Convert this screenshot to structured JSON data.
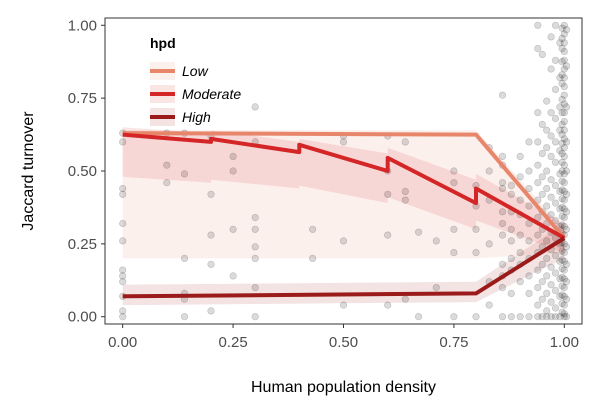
{
  "chart_data": {
    "type": "line",
    "xlabel": "Human population density",
    "ylabel": "Jaccard turnover",
    "xlim": [
      -0.04,
      1.04
    ],
    "ylim": [
      -0.025,
      1.025
    ],
    "x_ticks": [
      "0.00",
      "0.25",
      "0.50",
      "0.75",
      "1.00"
    ],
    "y_ticks": [
      "0.00",
      "0.25",
      "0.50",
      "0.75",
      "1.00"
    ],
    "grid": false,
    "legend": {
      "title": "hpd",
      "placement": "top-left",
      "entries": [
        "Low",
        "Moderate",
        "High"
      ]
    },
    "series": [
      {
        "name": "Low",
        "color": "#E8866B",
        "x": [
          0.0,
          0.8,
          1.0
        ],
        "y": [
          0.63,
          0.625,
          0.27
        ],
        "ribbon_lower": [
          0.2,
          0.2,
          0.22
        ],
        "ribbon_upper": [
          0.64,
          0.64,
          0.3
        ]
      },
      {
        "name": "Moderate",
        "color": "#D42626",
        "x": [
          0.0,
          0.2,
          0.2,
          0.4,
          0.4,
          0.6,
          0.6,
          0.8,
          0.8,
          1.0
        ],
        "y": [
          0.625,
          0.6,
          0.61,
          0.565,
          0.59,
          0.5,
          0.545,
          0.39,
          0.44,
          0.27
        ],
        "ribbon_lower": [
          0.48,
          0.46,
          0.47,
          0.44,
          0.45,
          0.39,
          0.41,
          0.3,
          0.33,
          0.22
        ],
        "ribbon_upper": [
          0.65,
          0.63,
          0.64,
          0.6,
          0.61,
          0.56,
          0.58,
          0.47,
          0.49,
          0.32
        ]
      },
      {
        "name": "High",
        "color": "#9B1B1B",
        "x": [
          0.0,
          0.8,
          1.0
        ],
        "y": [
          0.07,
          0.08,
          0.27
        ],
        "ribbon_lower": [
          0.04,
          0.05,
          0.2
        ],
        "ribbon_upper": [
          0.11,
          0.12,
          0.32
        ]
      }
    ],
    "points": {
      "color": "#000000",
      "alpha": 0.14,
      "data": [
        [
          0,
          0.63
        ],
        [
          0,
          0.6
        ],
        [
          0,
          0.44
        ],
        [
          0,
          0.42
        ],
        [
          0,
          0.32
        ],
        [
          0,
          0.26
        ],
        [
          0,
          0.16
        ],
        [
          0,
          0.14
        ],
        [
          0,
          0.12
        ],
        [
          0,
          0.07
        ],
        [
          0,
          0.02
        ],
        [
          0,
          0
        ],
        [
          0.1,
          0.63
        ],
        [
          0.1,
          0.52
        ],
        [
          0.1,
          0.46
        ],
        [
          0.14,
          0.63
        ],
        [
          0.14,
          0.49
        ],
        [
          0.14,
          0.2
        ],
        [
          0.14,
          0.08
        ],
        [
          0.14,
          0.06
        ],
        [
          0.14,
          0
        ],
        [
          0.2,
          0.62
        ],
        [
          0.2,
          0.42
        ],
        [
          0.2,
          0.28
        ],
        [
          0.2,
          0.18
        ],
        [
          0.2,
          0.02
        ],
        [
          0.25,
          0.55
        ],
        [
          0.25,
          0.5
        ],
        [
          0.25,
          0.3
        ],
        [
          0.25,
          0.14
        ],
        [
          0.3,
          0.72
        ],
        [
          0.3,
          0.6
        ],
        [
          0.3,
          0.34
        ],
        [
          0.3,
          0.3
        ],
        [
          0.3,
          0.24
        ],
        [
          0.3,
          0.2
        ],
        [
          0.3,
          0.1
        ],
        [
          0.3,
          0.0
        ],
        [
          0.43,
          0.3
        ],
        [
          0.43,
          0.2
        ],
        [
          0.5,
          0.62
        ],
        [
          0.5,
          0.6
        ],
        [
          0.5,
          0.26
        ],
        [
          0.5,
          0.04
        ],
        [
          0.6,
          0.62
        ],
        [
          0.6,
          0.5
        ],
        [
          0.6,
          0.42
        ],
        [
          0.6,
          0.28
        ],
        [
          0.6,
          0.04
        ],
        [
          0.64,
          0.6
        ],
        [
          0.64,
          0.43
        ],
        [
          0.64,
          0.4
        ],
        [
          0.64,
          0.06
        ],
        [
          0.67,
          0.29
        ],
        [
          0.67,
          0.0
        ],
        [
          0.71,
          0.26
        ],
        [
          0.71,
          0.1
        ],
        [
          0.75,
          0.5
        ],
        [
          0.75,
          0.46
        ],
        [
          0.75,
          0.3
        ],
        [
          0.75,
          0.22
        ],
        [
          0.75,
          0.0
        ],
        [
          0.8,
          0.45
        ],
        [
          0.8,
          0.38
        ],
        [
          0.8,
          0.3
        ],
        [
          0.8,
          0.22
        ],
        [
          0.8,
          0.0
        ],
        [
          0.83,
          0.58
        ],
        [
          0.83,
          0.5
        ],
        [
          0.83,
          0.4
        ],
        [
          0.83,
          0.25
        ],
        [
          0.83,
          0.12
        ],
        [
          0.83,
          0.04
        ],
        [
          0.86,
          0.76
        ],
        [
          0.86,
          0.55
        ],
        [
          0.86,
          0.52
        ],
        [
          0.86,
          0.46
        ],
        [
          0.86,
          0.44
        ],
        [
          0.86,
          0.36
        ],
        [
          0.86,
          0.32
        ],
        [
          0.86,
          0.28
        ],
        [
          0.86,
          0.18
        ],
        [
          0.86,
          0.14
        ],
        [
          0.86,
          0.1
        ],
        [
          0.86,
          0.0
        ],
        [
          0.88,
          0.45
        ],
        [
          0.88,
          0.42
        ],
        [
          0.88,
          0.36
        ],
        [
          0.88,
          0.3
        ],
        [
          0.88,
          0.26
        ],
        [
          0.88,
          0.2
        ],
        [
          0.88,
          0.16
        ],
        [
          0.88,
          0.08
        ],
        [
          0.88,
          0.0
        ],
        [
          0.9,
          0.55
        ],
        [
          0.9,
          0.48
        ],
        [
          0.9,
          0.4
        ],
        [
          0.9,
          0.35
        ],
        [
          0.9,
          0.28
        ],
        [
          0.9,
          0.22
        ],
        [
          0.9,
          0.18
        ],
        [
          0.9,
          0.12
        ],
        [
          0.9,
          0.0
        ],
        [
          0.92,
          0.6
        ],
        [
          0.92,
          0.5
        ],
        [
          0.92,
          0.44
        ],
        [
          0.92,
          0.38
        ],
        [
          0.92,
          0.32
        ],
        [
          0.92,
          0.26
        ],
        [
          0.92,
          0.2
        ],
        [
          0.92,
          0.14
        ],
        [
          0.92,
          0.08
        ],
        [
          0.92,
          0.0
        ],
        [
          0.94,
          1.0
        ],
        [
          0.94,
          0.92
        ],
        [
          0.94,
          0.7
        ],
        [
          0.94,
          0.6
        ],
        [
          0.94,
          0.52
        ],
        [
          0.94,
          0.46
        ],
        [
          0.94,
          0.4
        ],
        [
          0.94,
          0.34
        ],
        [
          0.94,
          0.28
        ],
        [
          0.94,
          0.22
        ],
        [
          0.94,
          0.16
        ],
        [
          0.94,
          0.1
        ],
        [
          0.94,
          0.04
        ],
        [
          0.94,
          0.0
        ],
        [
          0.95,
          0.9
        ],
        [
          0.95,
          0.66
        ],
        [
          0.95,
          0.56
        ],
        [
          0.95,
          0.48
        ],
        [
          0.95,
          0.42
        ],
        [
          0.95,
          0.36
        ],
        [
          0.95,
          0.3
        ],
        [
          0.95,
          0.24
        ],
        [
          0.95,
          0.18
        ],
        [
          0.95,
          0.12
        ],
        [
          0.95,
          0.06
        ],
        [
          0.95,
          0.0
        ],
        [
          0.96,
          0.74
        ],
        [
          0.96,
          0.64
        ],
        [
          0.96,
          0.58
        ],
        [
          0.96,
          0.5
        ],
        [
          0.96,
          0.44
        ],
        [
          0.96,
          0.38
        ],
        [
          0.96,
          0.32
        ],
        [
          0.96,
          0.26
        ],
        [
          0.96,
          0.2
        ],
        [
          0.96,
          0.14
        ],
        [
          0.96,
          0.08
        ],
        [
          0.96,
          0.02
        ],
        [
          0.96,
          0.0
        ],
        [
          0.97,
          0.96
        ],
        [
          0.97,
          0.85
        ],
        [
          0.97,
          0.7
        ],
        [
          0.97,
          0.62
        ],
        [
          0.97,
          0.55
        ],
        [
          0.97,
          0.47
        ],
        [
          0.97,
          0.41
        ],
        [
          0.97,
          0.35
        ],
        [
          0.97,
          0.29
        ],
        [
          0.97,
          0.23
        ],
        [
          0.97,
          0.17
        ],
        [
          0.97,
          0.11
        ],
        [
          0.97,
          0.05
        ],
        [
          0.97,
          0.0
        ],
        [
          0.98,
          1.0
        ],
        [
          0.98,
          0.88
        ],
        [
          0.98,
          0.78
        ],
        [
          0.98,
          0.68
        ],
        [
          0.98,
          0.6
        ],
        [
          0.98,
          0.53
        ],
        [
          0.98,
          0.45
        ],
        [
          0.98,
          0.39
        ],
        [
          0.98,
          0.33
        ],
        [
          0.98,
          0.27
        ],
        [
          0.98,
          0.21
        ],
        [
          0.98,
          0.15
        ],
        [
          0.98,
          0.09
        ],
        [
          0.98,
          0.03
        ],
        [
          0.98,
          0.0
        ],
        [
          0.99,
          0.94
        ],
        [
          0.99,
          0.82
        ],
        [
          0.99,
          0.72
        ],
        [
          0.99,
          0.64
        ],
        [
          0.99,
          0.57
        ],
        [
          0.99,
          0.49
        ],
        [
          0.99,
          0.43
        ],
        [
          0.99,
          0.37
        ],
        [
          0.99,
          0.31
        ],
        [
          0.99,
          0.25
        ],
        [
          0.99,
          0.19
        ],
        [
          0.99,
          0.13
        ],
        [
          0.99,
          0.07
        ],
        [
          0.99,
          0.0
        ],
        [
          1.0,
          1.0
        ],
        [
          1.0,
          0.97
        ],
        [
          1.0,
          0.94
        ],
        [
          1.0,
          0.91
        ],
        [
          1.0,
          0.88
        ],
        [
          1.0,
          0.85
        ],
        [
          1.0,
          0.82
        ],
        [
          1.0,
          0.79
        ],
        [
          1.0,
          0.76
        ],
        [
          1.0,
          0.73
        ],
        [
          1.0,
          0.7
        ],
        [
          1.0,
          0.67
        ],
        [
          1.0,
          0.64
        ],
        [
          1.0,
          0.61
        ],
        [
          1.0,
          0.58
        ],
        [
          1.0,
          0.55
        ],
        [
          1.0,
          0.52
        ],
        [
          1.0,
          0.49
        ],
        [
          1.0,
          0.46
        ],
        [
          1.0,
          0.43
        ],
        [
          1.0,
          0.4
        ],
        [
          1.0,
          0.37
        ],
        [
          1.0,
          0.34
        ],
        [
          1.0,
          0.31
        ],
        [
          1.0,
          0.28
        ],
        [
          1.0,
          0.25
        ],
        [
          1.0,
          0.22
        ],
        [
          1.0,
          0.19
        ],
        [
          1.0,
          0.16
        ],
        [
          1.0,
          0.13
        ],
        [
          1.0,
          0.1
        ],
        [
          1.0,
          0.07
        ],
        [
          1.0,
          0.04
        ],
        [
          1.0,
          0.01
        ],
        [
          1.0,
          0.0
        ],
        [
          0.995,
          0.99
        ],
        [
          0.995,
          0.955
        ],
        [
          0.995,
          0.92
        ],
        [
          0.995,
          0.875
        ],
        [
          0.995,
          0.83
        ],
        [
          0.995,
          0.8
        ],
        [
          0.995,
          0.745
        ],
        [
          0.995,
          0.7
        ],
        [
          0.995,
          0.66
        ],
        [
          0.995,
          0.625
        ],
        [
          0.995,
          0.595
        ],
        [
          0.995,
          0.56
        ],
        [
          0.995,
          0.53
        ],
        [
          0.995,
          0.5
        ],
        [
          0.995,
          0.465
        ],
        [
          0.995,
          0.435
        ],
        [
          0.995,
          0.405
        ],
        [
          0.995,
          0.375
        ],
        [
          0.995,
          0.345
        ],
        [
          0.995,
          0.315
        ],
        [
          0.995,
          0.285
        ],
        [
          0.995,
          0.255
        ],
        [
          0.995,
          0.225
        ],
        [
          0.995,
          0.195
        ],
        [
          0.995,
          0.165
        ],
        [
          0.995,
          0.135
        ],
        [
          0.995,
          0.105
        ],
        [
          0.995,
          0.075
        ],
        [
          0.995,
          0.045
        ],
        [
          0.995,
          0.015
        ],
        [
          1.005,
          0.985
        ],
        [
          1.005,
          0.86
        ],
        [
          1.005,
          0.72
        ],
        [
          1.005,
          0.6
        ],
        [
          1.005,
          0.5
        ],
        [
          1.005,
          0.42
        ],
        [
          1.005,
          0.36
        ],
        [
          1.005,
          0.3
        ],
        [
          1.005,
          0.24
        ],
        [
          1.005,
          0.18
        ],
        [
          1.005,
          0.12
        ],
        [
          1.005,
          0.06
        ],
        [
          1.005,
          0.0
        ]
      ]
    }
  }
}
